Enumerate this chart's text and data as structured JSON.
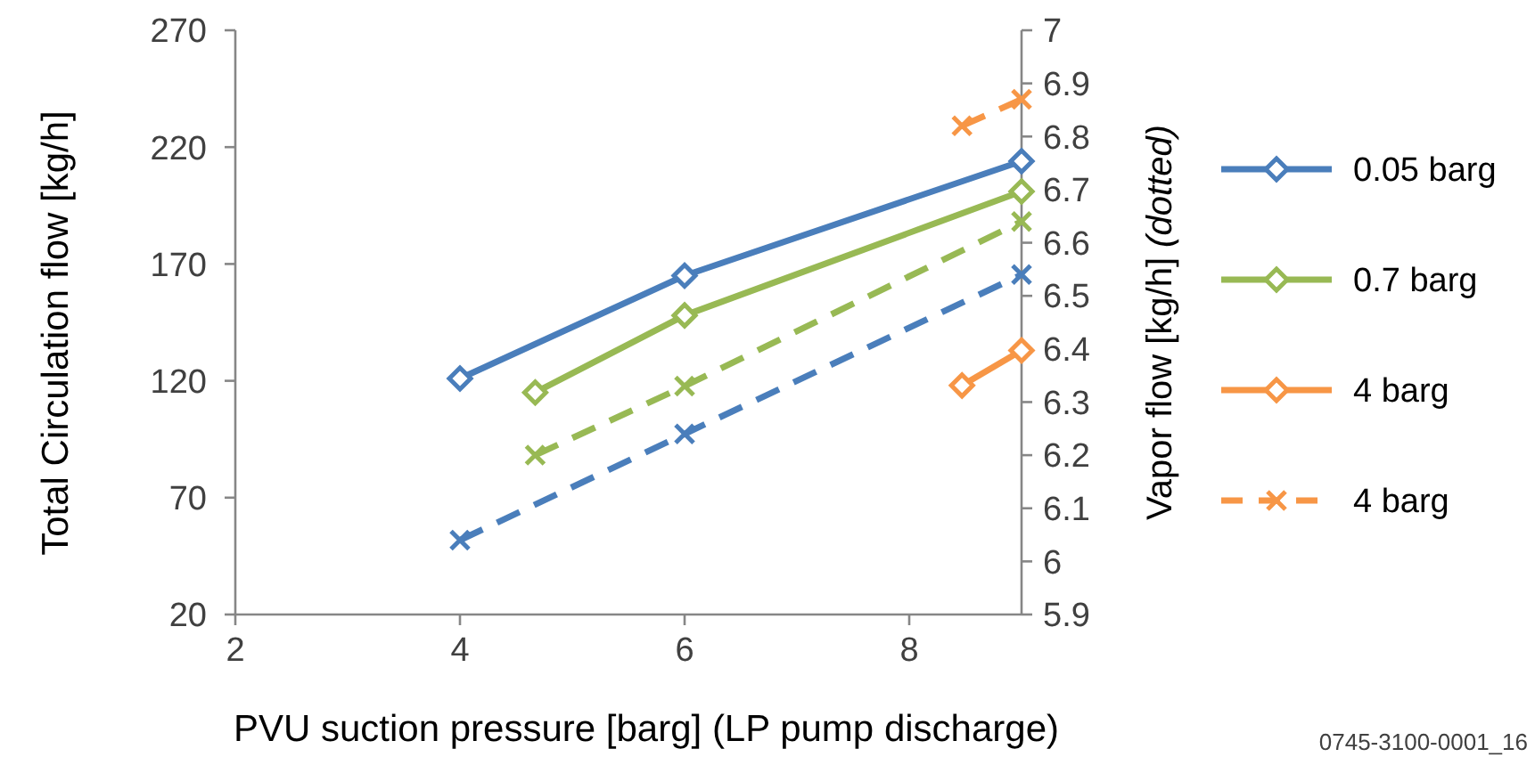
{
  "chart_data": {
    "type": "line",
    "xlabel": "PVU suction pressure [barg] (LP pump discharge)",
    "ylabel": "Total Circulation flow [kg/h]",
    "y2label": "Vapor flow [kg/h] (dotted)",
    "xlim": [
      2,
      9
    ],
    "xticks": [
      2,
      4,
      6,
      8
    ],
    "ylim": [
      20,
      270
    ],
    "yticks": [
      20,
      70,
      120,
      170,
      220,
      270
    ],
    "y2lim": [
      5.9,
      7
    ],
    "y2ticks": [
      5.9,
      6,
      6.1,
      6.2,
      6.3,
      6.4,
      6.5,
      6.6,
      6.7,
      6.8,
      6.9,
      7
    ],
    "grid": false,
    "legend": "right",
    "annotations": [
      "0745-3100-0001_16"
    ],
    "series": [
      {
        "name": "0.05 barg",
        "color": "#4a7ebb",
        "x": [
          4,
          6,
          9
        ],
        "values": [
          121,
          165,
          214
        ],
        "marker": "diamond",
        "line_style": "solid"
      },
      {
        "name": "0.7 barg",
        "color": "#98b954",
        "x": [
          4.67,
          6,
          9
        ],
        "values": [
          115,
          148,
          201
        ],
        "marker": "diamond",
        "line_style": "solid"
      },
      {
        "name": "4 barg",
        "color": "#f79646",
        "x": [
          8.47,
          9
        ],
        "values": [
          118,
          133
        ],
        "marker": "diamond",
        "line_style": "solid"
      },
      {
        "color": "#4a7ebb",
        "x": [
          4,
          6,
          9
        ],
        "values": [
          6.04,
          6.24,
          6.54
        ],
        "marker": "cross",
        "line_style": "dashed",
        "axis": "y2"
      },
      {
        "color": "#98b954",
        "x": [
          4.67,
          6,
          9
        ],
        "values": [
          6.2,
          6.33,
          6.64
        ],
        "marker": "cross",
        "line_style": "dashed",
        "axis": "y2"
      },
      {
        "name": "4 barg",
        "color": "#f79646",
        "x": [
          8.47,
          9
        ],
        "values": [
          6.82,
          6.87
        ],
        "marker": "cross",
        "line_style": "dashed",
        "axis": "y2"
      }
    ]
  }
}
